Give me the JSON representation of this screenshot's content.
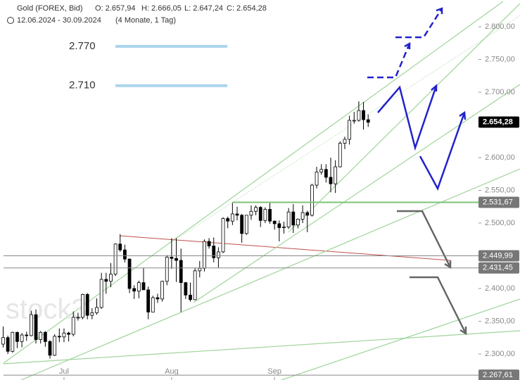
{
  "header": {
    "title": "Gold (FOREX, Bid)",
    "open": "O: 2.657,94",
    "high": "H: 2.666,05",
    "low": "L: 2.647,24",
    "close": "C: 2.654,28",
    "range": "12.06.2024 - 30.09.2024",
    "span": "(4 Monate, 1 Tag)"
  },
  "chart_data": {
    "type": "candlestick",
    "watermark": "stock3",
    "categories": [
      null,
      null,
      null,
      null,
      null,
      null,
      null,
      null,
      null,
      null,
      null,
      null,
      null,
      "Jul",
      null,
      null,
      null,
      null,
      null,
      null,
      null,
      null,
      null,
      null,
      null,
      null,
      null,
      null,
      null,
      null,
      null,
      null,
      null,
      null,
      null,
      null,
      "Aug",
      null,
      null,
      null,
      null,
      null,
      null,
      null,
      null,
      null,
      null,
      null,
      null,
      null,
      null,
      null,
      null,
      null,
      null,
      null,
      null,
      null,
      "Sep",
      null,
      null,
      null,
      null,
      null,
      null,
      null,
      null,
      null,
      null,
      null,
      null,
      null,
      null,
      null,
      null,
      null,
      null,
      null,
      null
    ],
    "open": [
      2315,
      2325,
      2304,
      2333,
      2319,
      2329,
      2328,
      2360,
      2322,
      2333,
      2319,
      2298,
      2327,
      2326,
      2332,
      2330,
      2356,
      2356,
      2391,
      2359,
      2363,
      2371,
      2414,
      2411,
      2422,
      2468,
      2459,
      2445,
      2400,
      2396,
      2409,
      2398,
      2364,
      2386,
      2384,
      2411,
      2448,
      2446,
      2443,
      2409,
      2390,
      2383,
      2427,
      2431,
      2472,
      2465,
      2447,
      2456,
      2507,
      2503,
      2514,
      2512,
      2484,
      2512,
      2518,
      2524,
      2504,
      2521,
      2503,
      2499,
      2493,
      2494,
      2517,
      2497,
      2506,
      2516,
      2512,
      2558,
      2578,
      2582,
      2570,
      2560,
      2586,
      2622,
      2628,
      2657,
      2657,
      2672,
      2658
    ],
    "high": [
      2342,
      2328,
      2334,
      2334,
      2332,
      2334,
      2366,
      2368,
      2335,
      2335,
      2321,
      2330,
      2339,
      2339,
      2334,
      2365,
      2363,
      2392,
      2393,
      2370,
      2385,
      2424,
      2424,
      2439,
      2469,
      2483,
      2467,
      2446,
      2405,
      2412,
      2431,
      2403,
      2389,
      2392,
      2412,
      2451,
      2477,
      2477,
      2461,
      2410,
      2409,
      2432,
      2442,
      2475,
      2477,
      2478,
      2463,
      2509,
      2510,
      2531,
      2525,
      2514,
      2512,
      2527,
      2527,
      2526,
      2524,
      2531,
      2504,
      2504,
      2502,
      2523,
      2529,
      2507,
      2527,
      2519,
      2560,
      2586,
      2590,
      2590,
      2600,
      2596,
      2625,
      2632,
      2664,
      2670,
      2686,
      2685,
      2666
    ],
    "low": [
      2310,
      2300,
      2302,
      2309,
      2310,
      2320,
      2327,
      2316,
      2316,
      2311,
      2293,
      2297,
      2318,
      2318,
      2319,
      2327,
      2351,
      2353,
      2353,
      2353,
      2360,
      2369,
      2392,
      2402,
      2419,
      2456,
      2440,
      2393,
      2384,
      2385,
      2400,
      2353,
      2364,
      2378,
      2380,
      2405,
      2430,
      2410,
      2364,
      2384,
      2380,
      2382,
      2417,
      2426,
      2461,
      2440,
      2432,
      2454,
      2492,
      2497,
      2504,
      2470,
      2482,
      2505,
      2512,
      2494,
      2500,
      2499,
      2490,
      2472,
      2484,
      2491,
      2485,
      2492,
      2500,
      2486,
      2510,
      2553,
      2574,
      2562,
      2547,
      2546,
      2585,
      2613,
      2620,
      2652,
      2655,
      2643,
      2647
    ],
    "close": [
      2325,
      2304,
      2333,
      2319,
      2329,
      2328,
      2360,
      2322,
      2333,
      2319,
      2298,
      2327,
      2326,
      2332,
      2330,
      2356,
      2356,
      2391,
      2359,
      2363,
      2371,
      2414,
      2411,
      2422,
      2468,
      2459,
      2445,
      2400,
      2396,
      2409,
      2398,
      2364,
      2386,
      2384,
      2411,
      2448,
      2446,
      2443,
      2409,
      2390,
      2383,
      2427,
      2431,
      2472,
      2465,
      2447,
      2456,
      2507,
      2503,
      2514,
      2512,
      2484,
      2512,
      2518,
      2524,
      2504,
      2521,
      2503,
      2499,
      2493,
      2494,
      2517,
      2497,
      2506,
      2516,
      2512,
      2558,
      2578,
      2582,
      2570,
      2560,
      2586,
      2622,
      2628,
      2657,
      2657,
      2672,
      2658,
      2654
    ],
    "up_color": "#ffffff",
    "down_color": "#000000",
    "ylim": [
      2260.2,
      2840.9
    ],
    "yticks": [
      {
        "value": 2300,
        "label": "2.300,00"
      },
      {
        "value": 2350,
        "label": "2.350,00"
      },
      {
        "value": 2400,
        "label": "2.400,00"
      },
      {
        "value": 2450,
        "label": "2.450,00"
      },
      {
        "value": 2500,
        "label": "2.500,00"
      },
      {
        "value": 2550,
        "label": "2.550,00"
      },
      {
        "value": 2600,
        "label": "2.600,00"
      },
      {
        "value": 2650,
        "label": "2.650,00"
      },
      {
        "value": 2700,
        "label": "2.700,00"
      },
      {
        "value": 2750,
        "label": "2.750,00"
      },
      {
        "value": 2800,
        "label": "2.800,00"
      }
    ],
    "levels": [
      {
        "value": 2770,
        "label": "2.770"
      },
      {
        "value": 2710,
        "label": "2.710"
      }
    ],
    "price_tags": [
      {
        "value": 2654.28,
        "label": "2.654,28",
        "color": "#000000"
      },
      {
        "value": 2531.67,
        "label": "2.531,67",
        "color": "#777777"
      },
      {
        "value": 2449.99,
        "label": "2.449,99",
        "color": "#777777"
      },
      {
        "value": 2431.45,
        "label": "2.431,45",
        "color": "#777777"
      },
      {
        "value": 2267.61,
        "label": "2.267,61",
        "color": "#777777"
      }
    ]
  }
}
